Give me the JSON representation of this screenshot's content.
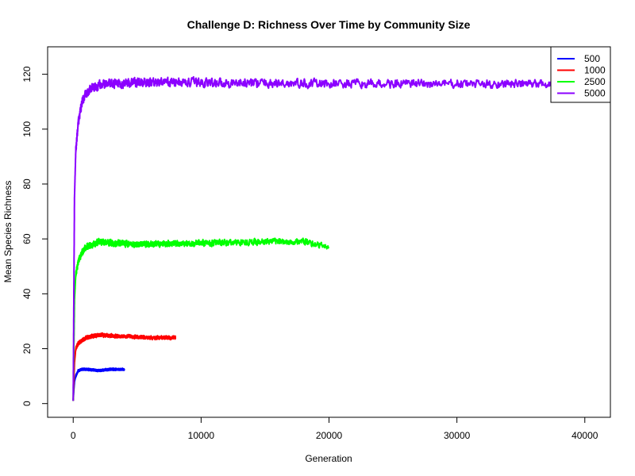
{
  "chart_data": {
    "type": "line",
    "title": "Challenge D: Richness Over Time by Community Size",
    "xlabel": "Generation",
    "ylabel": "Mean Species Richness",
    "xlim": [
      -2000,
      42000
    ],
    "ylim": [
      -5,
      130
    ],
    "x_ticks": [
      0,
      10000,
      20000,
      30000,
      40000
    ],
    "x_tick_labels": [
      "0",
      "10000",
      "20000",
      "30000",
      "40000"
    ],
    "y_ticks": [
      0,
      20,
      40,
      60,
      80,
      100,
      120
    ],
    "y_tick_labels": [
      "0",
      "20",
      "40",
      "60",
      "80",
      "100",
      "120"
    ],
    "grid": false,
    "legend_position": "top-right",
    "series": [
      {
        "name": "500",
        "color": "#0000FF",
        "x": [
          0,
          50,
          100,
          200,
          400,
          700,
          1000,
          2000,
          3000,
          4000
        ],
        "y": [
          1,
          5,
          8,
          10,
          12,
          12.5,
          12.5,
          12,
          12.5,
          12.5
        ],
        "noise": 1.2
      },
      {
        "name": "1000",
        "color": "#FF0000",
        "x": [
          0,
          50,
          100,
          200,
          400,
          700,
          1000,
          1500,
          2000,
          4000,
          6000,
          8000
        ],
        "y": [
          1,
          8,
          15,
          20,
          22,
          23,
          24,
          24.5,
          25,
          24.5,
          24,
          24
        ],
        "noise": 2
      },
      {
        "name": "2500",
        "color": "#00FF00",
        "x": [
          0,
          50,
          100,
          200,
          400,
          700,
          1000,
          1500,
          2000,
          5000,
          10000,
          15000,
          18000,
          20000
        ],
        "y": [
          1,
          20,
          38,
          47,
          52,
          55,
          57,
          58,
          59,
          58,
          58.5,
          59,
          59,
          57
        ],
        "noise": 3.5
      },
      {
        "name": "5000",
        "color": "#8B00FF",
        "x": [
          0,
          50,
          100,
          200,
          400,
          700,
          1000,
          1500,
          2000,
          3000,
          5000,
          10000,
          20000,
          30000,
          37000,
          40000
        ],
        "y": [
          1,
          40,
          75,
          92,
          103,
          110,
          113,
          115,
          116,
          116.5,
          117,
          117,
          116.5,
          116.5,
          116.5,
          116
        ],
        "noise": 5
      }
    ]
  }
}
